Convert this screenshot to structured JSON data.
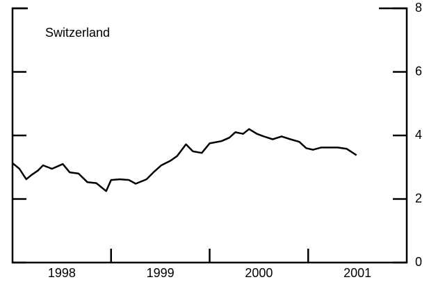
{
  "chart_data": {
    "type": "line",
    "title": "Switzerland",
    "x": [
      1998.0,
      1998.07,
      1998.14,
      1998.19,
      1998.26,
      1998.31,
      1998.4,
      1998.51,
      1998.58,
      1998.67,
      1998.76,
      1998.85,
      1998.93,
      1998.95,
      1999.0,
      1999.09,
      1999.18,
      1999.25,
      1999.36,
      1999.43,
      1999.51,
      1999.6,
      1999.67,
      1999.76,
      1999.83,
      1999.92,
      2000.0,
      2000.12,
      2000.2,
      2000.26,
      2000.34,
      2000.4,
      2000.48,
      2000.55,
      2000.64,
      2000.73,
      2000.82,
      2000.91,
      2000.98,
      2001.05,
      2001.13,
      2001.2,
      2001.3,
      2001.39,
      2001.49
    ],
    "series": [
      {
        "color": "#000000",
        "values": [
          3.13,
          2.95,
          2.62,
          2.75,
          2.9,
          3.06,
          2.95,
          3.1,
          2.84,
          2.8,
          2.53,
          2.5,
          2.3,
          2.25,
          2.6,
          2.62,
          2.6,
          2.48,
          2.62,
          2.84,
          3.06,
          3.2,
          3.35,
          3.72,
          3.5,
          3.45,
          3.75,
          3.82,
          3.93,
          4.1,
          4.05,
          4.2,
          4.05,
          3.97,
          3.88,
          3.97,
          3.88,
          3.8,
          3.6,
          3.55,
          3.62,
          3.62,
          3.62,
          3.58,
          3.38
        ]
      }
    ],
    "xlim": [
      1998,
      2002
    ],
    "xticks": [
      {
        "value": 1998.5,
        "label": "1998"
      },
      {
        "value": 1999.5,
        "label": "1999"
      },
      {
        "value": 2000.5,
        "label": "2000"
      },
      {
        "value": 2001.5,
        "label": "2001"
      }
    ],
    "xtick_marks": [
      1999,
      2000,
      2001
    ],
    "ylim": [
      0,
      8
    ],
    "yticks": [
      0,
      2,
      4,
      6,
      8
    ],
    "grid": false
  }
}
